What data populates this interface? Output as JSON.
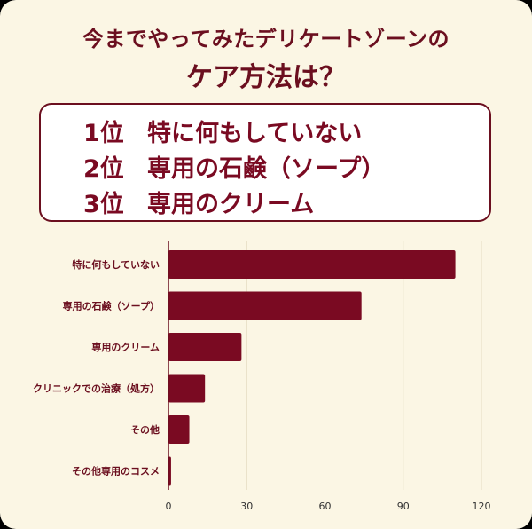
{
  "header": {
    "title_line1": "今までやってみたデリケートゾーンの",
    "title_line2": "ケア方法は？"
  },
  "ranking": [
    {
      "place": "1位",
      "label": "特に何もしていない"
    },
    {
      "place": "2位",
      "label": "専用の石鹸（ソープ）"
    },
    {
      "place": "3位",
      "label": "専用のクリーム"
    }
  ],
  "colors": {
    "bar": "#7a0a22",
    "text": "#6b0f1f",
    "background": "#fbf6e4"
  },
  "chart_data": {
    "type": "bar",
    "orientation": "horizontal",
    "categories": [
      "特に何もしていない",
      "専用の石鹸（ソープ）",
      "専用のクリーム",
      "クリニックでの治療（処方）",
      "その他",
      "その他専用のコスメ"
    ],
    "values": [
      110,
      74,
      28,
      14,
      8,
      1
    ],
    "xlim": [
      0,
      120
    ],
    "xticks": [
      "0",
      "30",
      "60",
      "90",
      "120"
    ],
    "grid": true
  }
}
